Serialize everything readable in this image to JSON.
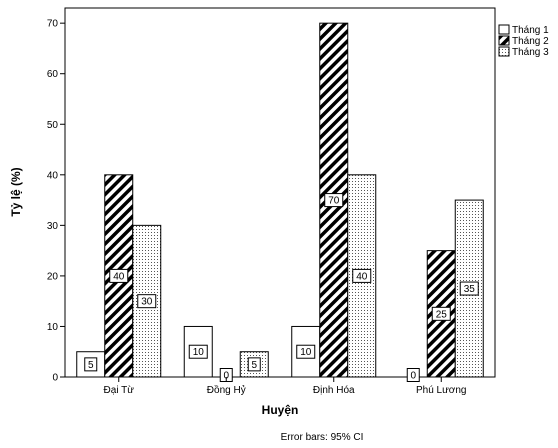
{
  "chart_data": {
    "type": "bar",
    "xlabel": "Huyện",
    "ylabel": "Tỷ lệ (%)",
    "categories": [
      "Đại Từ",
      "Đồng Hỷ",
      "Định Hóa",
      "Phú Lương"
    ],
    "series": [
      {
        "name": "Tháng 1",
        "values": [
          5,
          10,
          10,
          0
        ],
        "pattern": "none"
      },
      {
        "name": "Tháng 2",
        "values": [
          40,
          0,
          70,
          25
        ],
        "pattern": "diagonal-hatch"
      },
      {
        "name": "Tháng 3",
        "values": [
          30,
          5,
          40,
          35
        ],
        "pattern": "dots"
      }
    ],
    "data_labels": [
      [
        "5",
        "10",
        "10",
        "0"
      ],
      [
        "40",
        "0",
        "70",
        "25"
      ],
      [
        "30",
        "5",
        "40",
        "35"
      ]
    ],
    "ylim": [
      0,
      73
    ],
    "yticks": [
      0,
      10,
      20,
      30,
      40,
      50,
      60,
      70
    ],
    "grid": false,
    "legend_position": "top-right",
    "footnote": "Error bars: 95% CI",
    "colors": {
      "bar_outline": "#000000",
      "background": "#ffffff"
    }
  }
}
